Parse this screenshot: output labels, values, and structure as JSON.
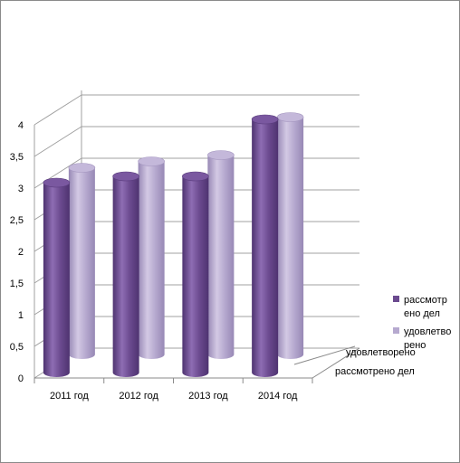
{
  "chart_data": {
    "type": "bar",
    "style": "3d-cylinder",
    "categories": [
      "2011 год",
      "2012 год",
      "2013 год",
      "2014 год"
    ],
    "series": [
      {
        "name": "рассмотрено дел",
        "values": [
          3.0,
          3.1,
          3.1,
          4.0
        ],
        "color": "#6b4a8f"
      },
      {
        "name": "удовлетворено",
        "values": [
          2.95,
          3.05,
          3.15,
          3.75
        ],
        "color": "#b6a9cf"
      }
    ],
    "depth_axis_labels": [
      "удовлетворено",
      "рассмотрено дел"
    ],
    "legend_entries": [
      {
        "lines": [
          "рассмотр",
          "ено дел"
        ]
      },
      {
        "lines": [
          "удовлетво",
          "рено"
        ]
      }
    ],
    "yticks": [
      "0",
      "0,5",
      "1",
      "1,5",
      "2",
      "2,5",
      "3",
      "3,5",
      "4"
    ],
    "ylim": [
      0,
      4
    ],
    "grid": true,
    "legend": "right"
  }
}
